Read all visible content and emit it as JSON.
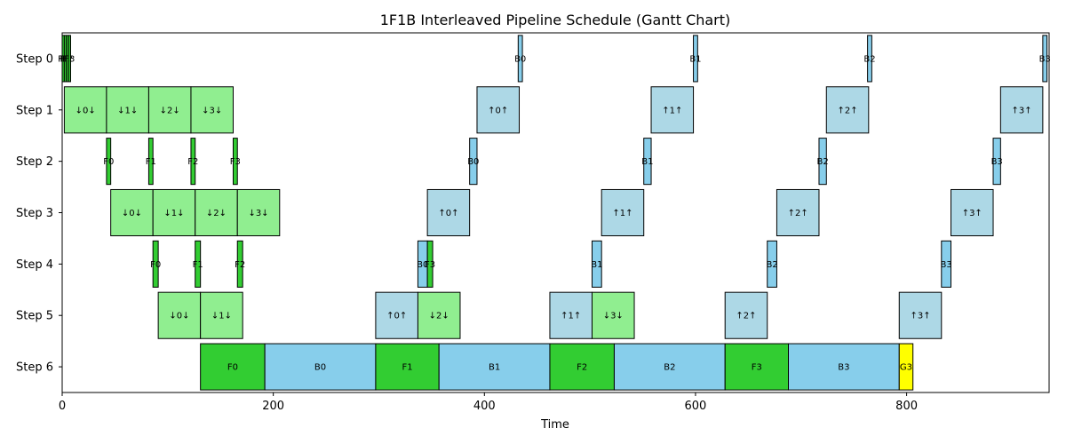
{
  "chart_data": {
    "type": "gantt",
    "title": "1F1B Interleaved Pipeline Schedule (Gantt Chart)",
    "xlabel": "Time",
    "ylabel": "",
    "xlim": [
      0,
      935
    ],
    "xticks": [
      0,
      200,
      400,
      600,
      800
    ],
    "rows": [
      "Step 0",
      "Step 1",
      "Step 2",
      "Step 3",
      "Step 4",
      "Step 5",
      "Step 6"
    ],
    "colors": {
      "forward": "#32cd32",
      "backward": "#87ceeb",
      "transfer_fwd": "#90ee90",
      "transfer_bwd": "#add8e6",
      "grad": "#ffff00"
    },
    "tasks": [
      {
        "row": 0,
        "start": 0,
        "end": 2,
        "label": "F0",
        "kind": "forward"
      },
      {
        "row": 0,
        "start": 2,
        "end": 4,
        "label": "F1",
        "kind": "forward"
      },
      {
        "row": 0,
        "start": 4,
        "end": 6,
        "label": "F2",
        "kind": "forward"
      },
      {
        "row": 0,
        "start": 6,
        "end": 8,
        "label": "F3",
        "kind": "forward"
      },
      {
        "row": 0,
        "start": 432,
        "end": 436,
        "label": "B0",
        "kind": "backward"
      },
      {
        "row": 0,
        "start": 598,
        "end": 602,
        "label": "B1",
        "kind": "backward"
      },
      {
        "row": 0,
        "start": 763,
        "end": 767,
        "label": "B2",
        "kind": "backward"
      },
      {
        "row": 0,
        "start": 929,
        "end": 933,
        "label": "B3",
        "kind": "backward"
      },
      {
        "row": 1,
        "start": 2,
        "end": 42,
        "label": "↓0↓",
        "kind": "transfer_fwd"
      },
      {
        "row": 1,
        "start": 42,
        "end": 82,
        "label": "↓1↓",
        "kind": "transfer_fwd"
      },
      {
        "row": 1,
        "start": 82,
        "end": 122,
        "label": "↓2↓",
        "kind": "transfer_fwd"
      },
      {
        "row": 1,
        "start": 122,
        "end": 162,
        "label": "↓3↓",
        "kind": "transfer_fwd"
      },
      {
        "row": 1,
        "start": 393,
        "end": 433,
        "label": "↑0↑",
        "kind": "transfer_bwd"
      },
      {
        "row": 1,
        "start": 558,
        "end": 598,
        "label": "↑1↑",
        "kind": "transfer_bwd"
      },
      {
        "row": 1,
        "start": 724,
        "end": 764,
        "label": "↑2↑",
        "kind": "transfer_bwd"
      },
      {
        "row": 1,
        "start": 889,
        "end": 929,
        "label": "↑3↑",
        "kind": "transfer_bwd"
      },
      {
        "row": 2,
        "start": 42,
        "end": 46,
        "label": "F0",
        "kind": "forward"
      },
      {
        "row": 2,
        "start": 82,
        "end": 86,
        "label": "F1",
        "kind": "forward"
      },
      {
        "row": 2,
        "start": 122,
        "end": 126,
        "label": "F2",
        "kind": "forward"
      },
      {
        "row": 2,
        "start": 162,
        "end": 166,
        "label": "F3",
        "kind": "forward"
      },
      {
        "row": 2,
        "start": 386,
        "end": 393,
        "label": "B0",
        "kind": "backward"
      },
      {
        "row": 2,
        "start": 551,
        "end": 558,
        "label": "B1",
        "kind": "backward"
      },
      {
        "row": 2,
        "start": 717,
        "end": 724,
        "label": "B2",
        "kind": "backward"
      },
      {
        "row": 2,
        "start": 882,
        "end": 889,
        "label": "B3",
        "kind": "backward"
      },
      {
        "row": 3,
        "start": 46,
        "end": 86,
        "label": "↓0↓",
        "kind": "transfer_fwd"
      },
      {
        "row": 3,
        "start": 86,
        "end": 126,
        "label": "↓1↓",
        "kind": "transfer_fwd"
      },
      {
        "row": 3,
        "start": 126,
        "end": 166,
        "label": "↓2↓",
        "kind": "transfer_fwd"
      },
      {
        "row": 3,
        "start": 166,
        "end": 206,
        "label": "↓3↓",
        "kind": "transfer_fwd"
      },
      {
        "row": 3,
        "start": 346,
        "end": 386,
        "label": "↑0↑",
        "kind": "transfer_bwd"
      },
      {
        "row": 3,
        "start": 511,
        "end": 551,
        "label": "↑1↑",
        "kind": "transfer_bwd"
      },
      {
        "row": 3,
        "start": 677,
        "end": 717,
        "label": "↑2↑",
        "kind": "transfer_bwd"
      },
      {
        "row": 3,
        "start": 842,
        "end": 882,
        "label": "↑3↑",
        "kind": "transfer_bwd"
      },
      {
        "row": 4,
        "start": 86,
        "end": 91,
        "label": "F0",
        "kind": "forward"
      },
      {
        "row": 4,
        "start": 126,
        "end": 131,
        "label": "F1",
        "kind": "forward"
      },
      {
        "row": 4,
        "start": 166,
        "end": 171,
        "label": "F2",
        "kind": "forward"
      },
      {
        "row": 4,
        "start": 337,
        "end": 346,
        "label": "B0",
        "kind": "backward"
      },
      {
        "row": 4,
        "start": 346,
        "end": 351,
        "label": "F3",
        "kind": "forward"
      },
      {
        "row": 4,
        "start": 502,
        "end": 511,
        "label": "B1",
        "kind": "backward"
      },
      {
        "row": 4,
        "start": 668,
        "end": 677,
        "label": "B2",
        "kind": "backward"
      },
      {
        "row": 4,
        "start": 833,
        "end": 842,
        "label": "B3",
        "kind": "backward"
      },
      {
        "row": 5,
        "start": 91,
        "end": 131,
        "label": "↓0↓",
        "kind": "transfer_fwd"
      },
      {
        "row": 5,
        "start": 131,
        "end": 171,
        "label": "↓1↓",
        "kind": "transfer_fwd"
      },
      {
        "row": 5,
        "start": 297,
        "end": 337,
        "label": "↑0↑",
        "kind": "transfer_bwd"
      },
      {
        "row": 5,
        "start": 337,
        "end": 377,
        "label": "↓2↓",
        "kind": "transfer_fwd"
      },
      {
        "row": 5,
        "start": 462,
        "end": 502,
        "label": "↑1↑",
        "kind": "transfer_bwd"
      },
      {
        "row": 5,
        "start": 502,
        "end": 542,
        "label": "↓3↓",
        "kind": "transfer_fwd"
      },
      {
        "row": 5,
        "start": 628,
        "end": 668,
        "label": "↑2↑",
        "kind": "transfer_bwd"
      },
      {
        "row": 5,
        "start": 793,
        "end": 833,
        "label": "↑3↑",
        "kind": "transfer_bwd"
      },
      {
        "row": 6,
        "start": 131,
        "end": 192,
        "label": "F0",
        "kind": "forward"
      },
      {
        "row": 6,
        "start": 192,
        "end": 297,
        "label": "B0",
        "kind": "backward"
      },
      {
        "row": 6,
        "start": 297,
        "end": 357,
        "label": "F1",
        "kind": "forward"
      },
      {
        "row": 6,
        "start": 357,
        "end": 462,
        "label": "B1",
        "kind": "backward"
      },
      {
        "row": 6,
        "start": 462,
        "end": 523,
        "label": "F2",
        "kind": "forward"
      },
      {
        "row": 6,
        "start": 523,
        "end": 628,
        "label": "B2",
        "kind": "backward"
      },
      {
        "row": 6,
        "start": 628,
        "end": 688,
        "label": "F3",
        "kind": "forward"
      },
      {
        "row": 6,
        "start": 688,
        "end": 793,
        "label": "B3",
        "kind": "backward"
      },
      {
        "row": 6,
        "start": 793,
        "end": 806,
        "label": "G3",
        "kind": "grad"
      }
    ],
    "grid": false,
    "legend": "none"
  }
}
